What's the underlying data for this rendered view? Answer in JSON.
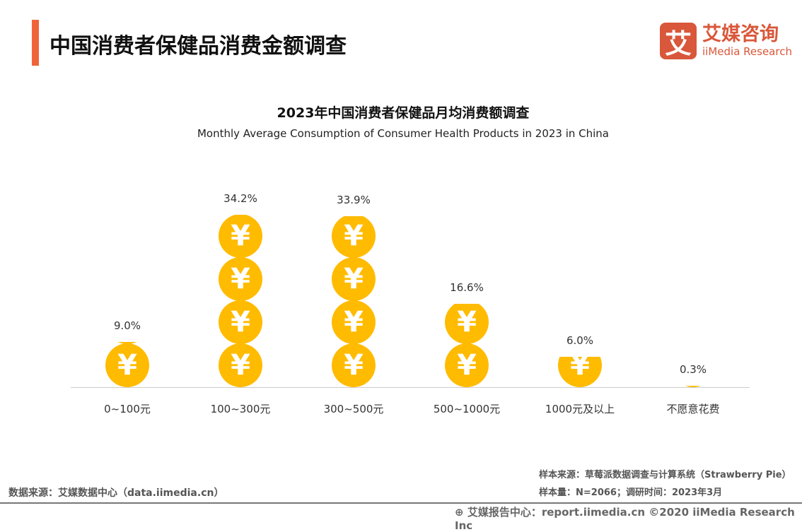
{
  "header": {
    "title": "中国消费者保健品消费金额调查"
  },
  "logo": {
    "mark": "艾",
    "cn": "艾媒咨询",
    "en": "iiMedia Research"
  },
  "chart_data": {
    "type": "bar",
    "title": "2023年中国消费者保健品月均消费额调查",
    "subtitle": "Monthly Average Consumption of Consumer Health Products in 2023 in China",
    "categories": [
      "0~100元",
      "100~300元",
      "300~500元",
      "500~1000元",
      "1000元及以上",
      "不愿意花费"
    ],
    "values": [
      9.0,
      34.2,
      33.9,
      16.6,
      6.0,
      0.3
    ],
    "value_labels": [
      "9.0%",
      "34.2%",
      "33.9%",
      "16.6%",
      "6.0%",
      "0.3%"
    ],
    "unit": "%",
    "mark": "yen-coin-pictograph",
    "color": "#ffbb00",
    "grid": false
  },
  "sources": {
    "left": "数据来源：艾媒数据中心（data.iimedia.cn）",
    "sample_source": "样本来源：草莓派数据调查与计算系统（Strawberry Pie）",
    "sample_size": "样本量：N=2066；调研时间：2023年3月"
  },
  "footer": {
    "text": "艾媒报告中心：report.iimedia.cn ©2020  iiMedia Research  Inc"
  }
}
